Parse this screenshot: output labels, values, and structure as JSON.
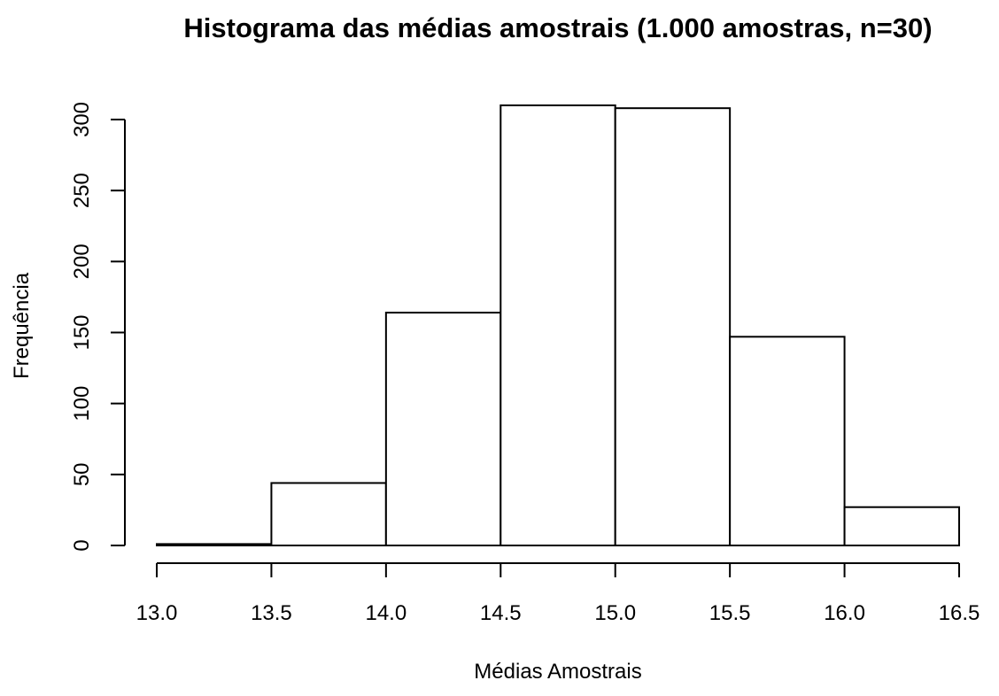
{
  "chart_data": {
    "type": "bar",
    "title": "Histograma das médias amostrais (1.000 amostras, n=30)",
    "xlabel": "Médias Amostrais",
    "ylabel": "Frequência",
    "bins": [
      {
        "start": 13.0,
        "end": 13.5,
        "count": 1
      },
      {
        "start": 13.5,
        "end": 14.0,
        "count": 44
      },
      {
        "start": 14.0,
        "end": 14.5,
        "count": 164
      },
      {
        "start": 14.5,
        "end": 15.0,
        "count": 310
      },
      {
        "start": 15.0,
        "end": 15.5,
        "count": 308
      },
      {
        "start": 15.5,
        "end": 16.0,
        "count": 147
      },
      {
        "start": 16.0,
        "end": 16.5,
        "count": 27
      }
    ],
    "xlim": [
      13.0,
      16.5
    ],
    "ylim": [
      0,
      300
    ],
    "xticks": [
      13.0,
      13.5,
      14.0,
      14.5,
      15.0,
      15.5,
      16.0,
      16.5
    ],
    "xtick_labels": [
      "13.0",
      "13.5",
      "14.0",
      "14.5",
      "15.0",
      "15.5",
      "16.0",
      "16.5"
    ],
    "yticks": [
      0,
      50,
      100,
      150,
      200,
      250,
      300
    ],
    "ytick_labels": [
      "0",
      "50",
      "100",
      "150",
      "200",
      "250",
      "300"
    ],
    "grid": false,
    "legend": "none",
    "bar_fill": "#ffffff",
    "bar_stroke": "#000000"
  }
}
